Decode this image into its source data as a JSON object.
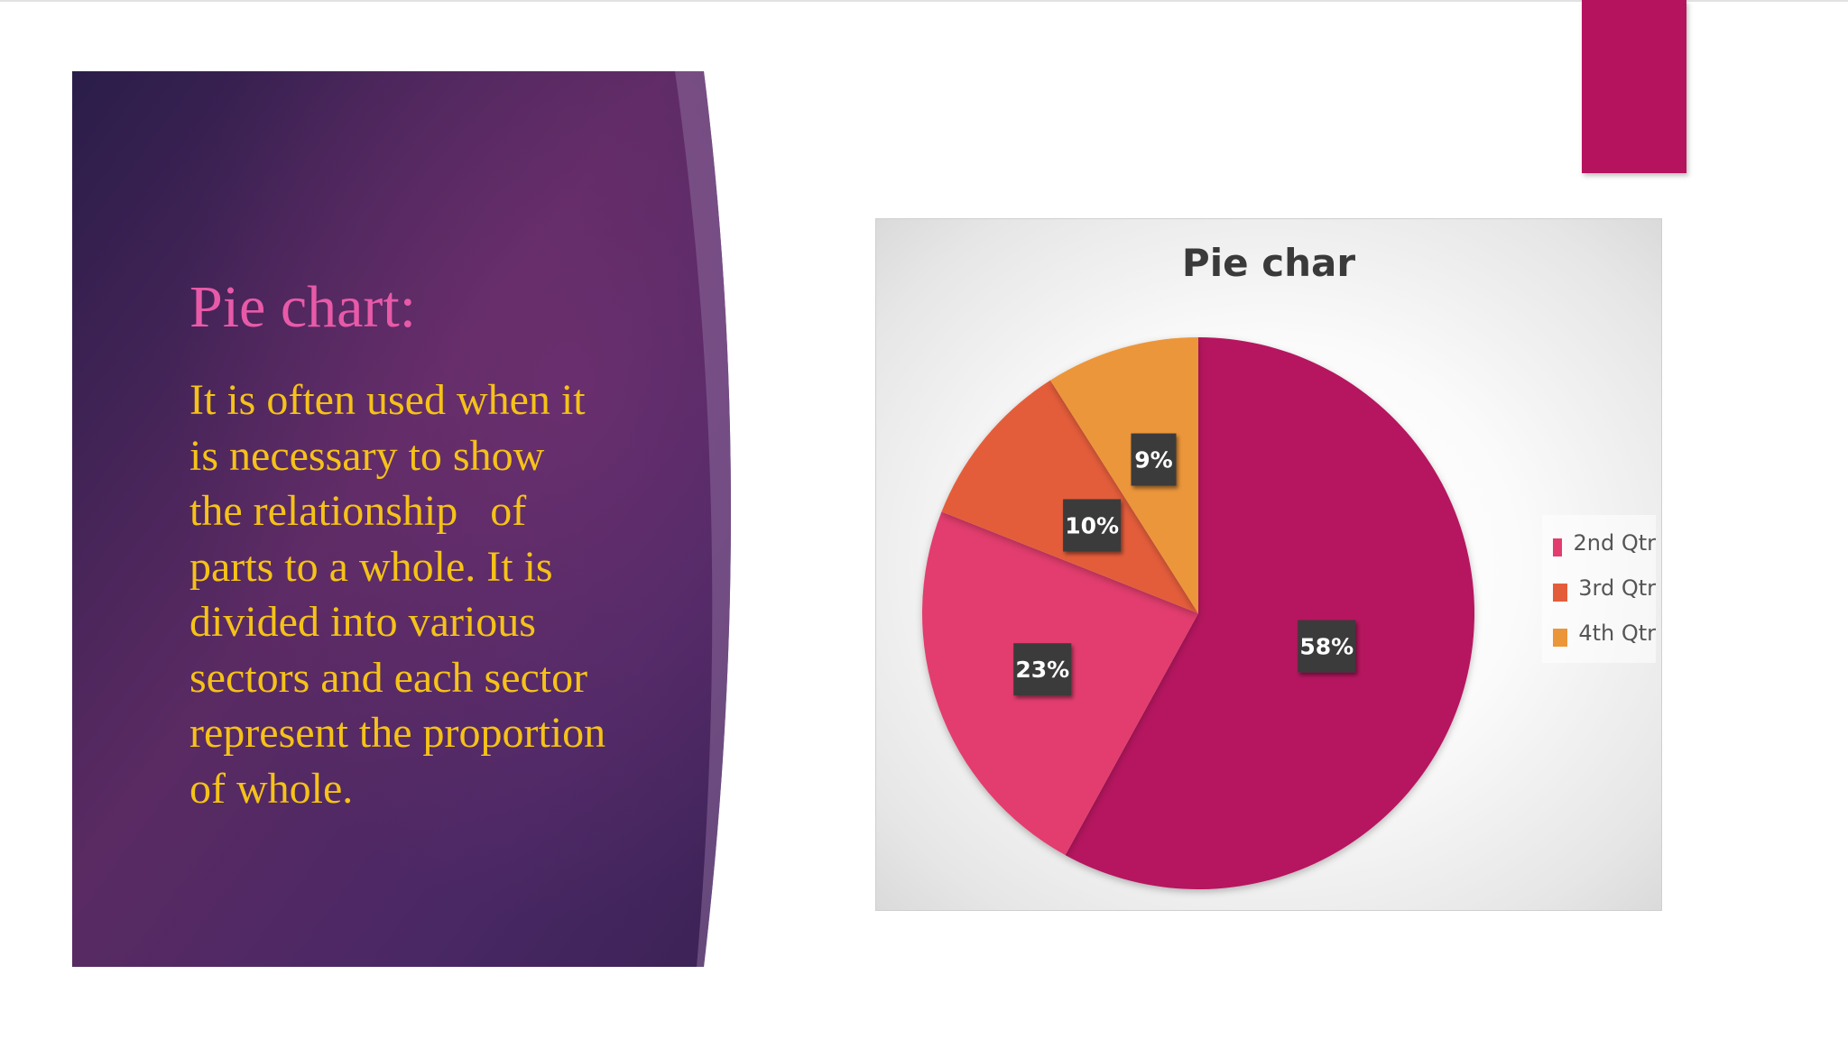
{
  "slide": {
    "title": "Pie chart:",
    "body_lines": [
      "It is often used when it",
      "is necessary to show",
      "the relationship   of",
      "parts to a whole. It is",
      "divided into various",
      "sectors and each sector",
      "represent the proportion",
      "of whole."
    ]
  },
  "colors": {
    "accent": "#b5135e",
    "title_text": "#e85aa8",
    "body_text": "#f5c218",
    "panel_dark": "#2d1f4e",
    "panel_mid": "#5a2a63"
  },
  "chart_data": {
    "type": "pie",
    "title": "Pie char",
    "series": [
      {
        "name": "",
        "categories": [
          "2nd Qtr",
          "3rd Qtr",
          "4th Qtr",
          ""
        ],
        "values": [
          58,
          23,
          10,
          9
        ],
        "labels": [
          "58%",
          "23%",
          "10%",
          "9%"
        ],
        "colors": [
          "#b5135e",
          "#e23d6e",
          "#e45d3a",
          "#ec963a"
        ]
      }
    ],
    "legend": {
      "position": "right",
      "entries": [
        {
          "label": "2nd Qtr",
          "color": "#e23d6e"
        },
        {
          "label": "3rd Qtr",
          "color": "#e45d3a"
        },
        {
          "label": "4th Qtr",
          "color": "#ec963a"
        }
      ]
    },
    "start_angle_deg": 0,
    "direction": "clockwise"
  }
}
